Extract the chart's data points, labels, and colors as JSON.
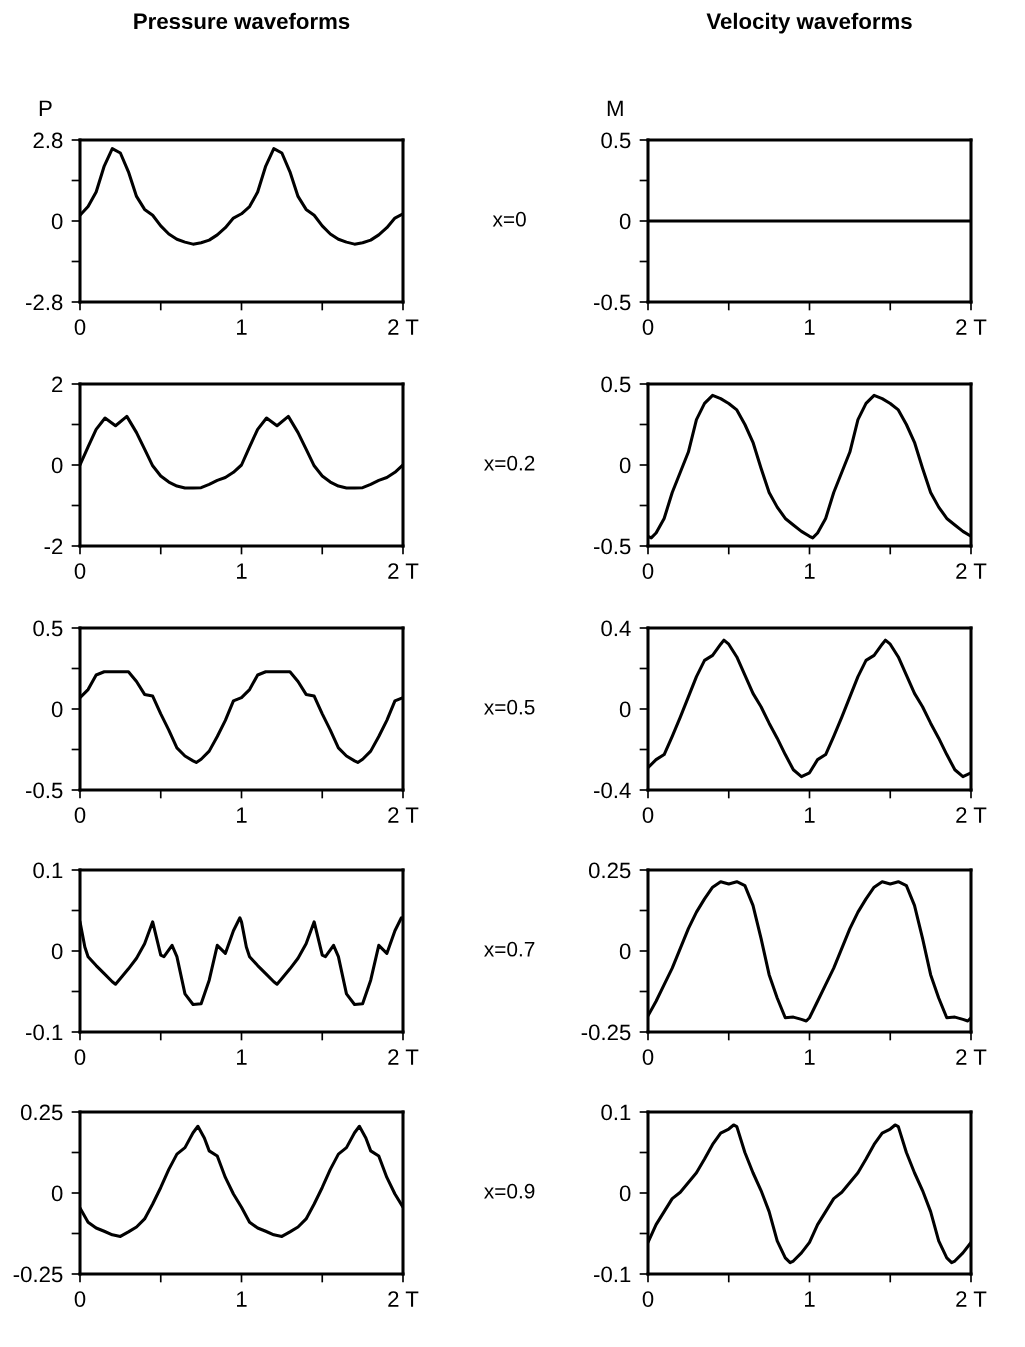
{
  "chart_data": [
    {
      "type": "line",
      "title": "Pressure waveforms",
      "ylabel": "P",
      "annotations": [
        "x=0"
      ],
      "color": "#000000",
      "line_style": "solid",
      "xlim": [
        0,
        2
      ],
      "ylim": [
        -2.8,
        2.8
      ],
      "xticks": [
        0,
        {
          "value": 0.5,
          "label": null
        },
        1,
        {
          "value": 1.5,
          "label": null
        },
        {
          "value": 2,
          "label": "2 T"
        }
      ],
      "yticks": [
        -2.8,
        {
          "value": -1.4,
          "label": null
        },
        0,
        {
          "value": 1.4,
          "label": null
        },
        2.8
      ],
      "x": [
        0,
        0.05,
        0.1,
        0.15,
        0.2,
        0.25,
        0.3,
        0.35,
        0.4,
        0.45,
        0.5,
        0.55,
        0.6,
        0.65,
        0.7,
        0.75,
        0.8,
        0.85,
        0.9,
        0.95,
        1,
        1.05,
        1.1,
        1.15,
        1.2,
        1.25,
        1.3,
        1.35,
        1.4,
        1.45,
        1.5,
        1.55,
        1.6,
        1.65,
        1.7,
        1.75,
        1.8,
        1.85,
        1.9,
        1.95,
        2
      ],
      "values": [
        0.2,
        0.5,
        1.0,
        1.9,
        2.5,
        2.35,
        1.7,
        0.85,
        0.4,
        0.2,
        -0.17,
        -0.45,
        -0.63,
        -0.73,
        -0.8,
        -0.75,
        -0.66,
        -0.48,
        -0.23,
        0.1,
        0.25,
        0.5,
        1.0,
        1.9,
        2.5,
        2.35,
        1.7,
        0.85,
        0.4,
        0.2,
        -0.17,
        -0.45,
        -0.63,
        -0.73,
        -0.8,
        -0.75,
        -0.66,
        -0.48,
        -0.23,
        0.1,
        0.25
      ]
    },
    {
      "type": "line",
      "title": "Velocity waveforms",
      "ylabel": "M",
      "color": "#000000",
      "line_style": "solid",
      "xlim": [
        0,
        2
      ],
      "ylim": [
        -0.5,
        0.5
      ],
      "xticks": [
        0,
        {
          "value": 0.5,
          "label": null
        },
        1,
        {
          "value": 1.5,
          "label": null
        },
        {
          "value": 2,
          "label": "2 T"
        }
      ],
      "yticks": [
        -0.5,
        {
          "value": -0.25,
          "label": null
        },
        0,
        {
          "value": 0.25,
          "label": null
        },
        0.5
      ],
      "x": [
        0,
        0.5,
        1,
        1.5,
        2
      ],
      "values": [
        0,
        0,
        0,
        0,
        0
      ]
    },
    {
      "type": "line",
      "annotations": [
        "x=0.2"
      ],
      "color": "#000000",
      "line_style": "solid",
      "xlim": [
        0,
        2
      ],
      "ylim": [
        -2,
        2
      ],
      "xticks": [
        0,
        {
          "value": 0.5,
          "label": null
        },
        1,
        {
          "value": 1.5,
          "label": null
        },
        {
          "value": 2,
          "label": "2 T"
        }
      ],
      "yticks": [
        -2,
        {
          "value": -1,
          "label": null
        },
        0,
        {
          "value": 1,
          "label": null
        },
        2
      ],
      "x": [
        0,
        0.05,
        0.1,
        0.155,
        0.22,
        0.29,
        0.35,
        0.4,
        0.45,
        0.5,
        0.55,
        0.6,
        0.65,
        0.7,
        0.75,
        0.8,
        0.85,
        0.9,
        0.95,
        1,
        1.05,
        1.1,
        1.155,
        1.22,
        1.29,
        1.35,
        1.4,
        1.45,
        1.5,
        1.55,
        1.6,
        1.65,
        1.7,
        1.75,
        1.8,
        1.85,
        1.9,
        1.95,
        2
      ],
      "values": [
        0,
        0.45,
        0.88,
        1.16,
        0.97,
        1.2,
        0.8,
        0.39,
        -0.02,
        -0.27,
        -0.42,
        -0.52,
        -0.57,
        -0.57,
        -0.56,
        -0.48,
        -0.38,
        -0.31,
        -0.18,
        0,
        0.45,
        0.88,
        1.16,
        0.97,
        1.2,
        0.8,
        0.39,
        -0.02,
        -0.27,
        -0.42,
        -0.52,
        -0.57,
        -0.57,
        -0.56,
        -0.48,
        -0.38,
        -0.31,
        -0.18,
        0
      ]
    },
    {
      "type": "line",
      "color": "#000000",
      "line_style": "solid",
      "xlim": [
        0,
        2
      ],
      "ylim": [
        -0.5,
        0.5
      ],
      "xticks": [
        0,
        {
          "value": 0.5,
          "label": null
        },
        1,
        {
          "value": 1.5,
          "label": null
        },
        {
          "value": 2,
          "label": "2 T"
        }
      ],
      "yticks": [
        -0.5,
        {
          "value": -0.25,
          "label": null
        },
        0,
        {
          "value": 0.25,
          "label": null
        },
        0.5
      ],
      "x": [
        0,
        0.02,
        0.05,
        0.1,
        0.15,
        0.2,
        0.25,
        0.3,
        0.35,
        0.4,
        0.45,
        0.5,
        0.55,
        0.6,
        0.65,
        0.7,
        0.75,
        0.8,
        0.85,
        0.9,
        0.95,
        1,
        1.02,
        1.05,
        1.1,
        1.15,
        1.2,
        1.25,
        1.3,
        1.35,
        1.4,
        1.45,
        1.5,
        1.55,
        1.6,
        1.65,
        1.7,
        1.75,
        1.8,
        1.85,
        1.9,
        1.95,
        2
      ],
      "values": [
        -0.44,
        -0.45,
        -0.42,
        -0.33,
        -0.17,
        -0.045,
        0.08,
        0.28,
        0.38,
        0.43,
        0.41,
        0.38,
        0.34,
        0.25,
        0.14,
        -0.02,
        -0.17,
        -0.26,
        -0.33,
        -0.37,
        -0.41,
        -0.44,
        -0.45,
        -0.42,
        -0.33,
        -0.17,
        -0.045,
        0.08,
        0.28,
        0.38,
        0.43,
        0.41,
        0.38,
        0.34,
        0.25,
        0.14,
        -0.02,
        -0.17,
        -0.26,
        -0.33,
        -0.37,
        -0.41,
        -0.44
      ]
    },
    {
      "type": "line",
      "annotations": [
        "x=0.5"
      ],
      "color": "#000000",
      "line_style": "solid",
      "xlim": [
        0,
        2
      ],
      "ylim": [
        -0.5,
        0.5
      ],
      "xticks": [
        0,
        {
          "value": 0.5,
          "label": null
        },
        1,
        {
          "value": 1.5,
          "label": null
        },
        {
          "value": 2,
          "label": "2 T"
        }
      ],
      "yticks": [
        -0.5,
        {
          "value": -0.25,
          "label": null
        },
        0,
        {
          "value": 0.25,
          "label": null
        },
        0.5
      ],
      "x": [
        0,
        0.05,
        0.1,
        0.15,
        0.2,
        0.25,
        0.3,
        0.35,
        0.4,
        0.45,
        0.5,
        0.55,
        0.6,
        0.65,
        0.7,
        0.72,
        0.75,
        0.8,
        0.85,
        0.9,
        0.95,
        1,
        1.05,
        1.1,
        1.15,
        1.2,
        1.25,
        1.3,
        1.35,
        1.4,
        1.45,
        1.5,
        1.55,
        1.6,
        1.65,
        1.7,
        1.72,
        1.75,
        1.8,
        1.85,
        1.9,
        1.95,
        2
      ],
      "values": [
        0.07,
        0.12,
        0.21,
        0.23,
        0.23,
        0.23,
        0.23,
        0.17,
        0.09,
        0.08,
        -0.03,
        -0.13,
        -0.24,
        -0.29,
        -0.32,
        -0.33,
        -0.31,
        -0.26,
        -0.17,
        -0.07,
        0.05,
        0.07,
        0.12,
        0.21,
        0.23,
        0.23,
        0.23,
        0.23,
        0.17,
        0.09,
        0.08,
        -0.03,
        -0.13,
        -0.24,
        -0.29,
        -0.32,
        -0.33,
        -0.31,
        -0.26,
        -0.17,
        -0.07,
        0.05,
        0.07
      ]
    },
    {
      "type": "line",
      "color": "#000000",
      "line_style": "solid",
      "xlim": [
        0,
        2
      ],
      "ylim": [
        -0.4,
        0.4
      ],
      "xticks": [
        0,
        {
          "value": 0.5,
          "label": null
        },
        1,
        {
          "value": 1.5,
          "label": null
        },
        {
          "value": 2,
          "label": "2 T"
        }
      ],
      "yticks": [
        -0.4,
        {
          "value": -0.2,
          "label": null
        },
        0,
        {
          "value": 0.2,
          "label": null
        },
        0.4
      ],
      "x": [
        0,
        0.05,
        0.1,
        0.15,
        0.2,
        0.25,
        0.3,
        0.35,
        0.4,
        0.45,
        0.47,
        0.5,
        0.55,
        0.6,
        0.65,
        0.7,
        0.75,
        0.8,
        0.85,
        0.9,
        0.95,
        1,
        1.05,
        1.1,
        1.15,
        1.2,
        1.25,
        1.3,
        1.35,
        1.4,
        1.45,
        1.47,
        1.5,
        1.55,
        1.6,
        1.65,
        1.7,
        1.75,
        1.8,
        1.85,
        1.9,
        1.95,
        2
      ],
      "values": [
        -0.29,
        -0.25,
        -0.225,
        -0.135,
        -0.04,
        0.06,
        0.16,
        0.24,
        0.265,
        0.32,
        0.34,
        0.32,
        0.257,
        0.167,
        0.077,
        0.011,
        -0.07,
        -0.144,
        -0.225,
        -0.3,
        -0.334,
        -0.315,
        -0.25,
        -0.225,
        -0.135,
        -0.04,
        0.06,
        0.16,
        0.24,
        0.265,
        0.32,
        0.34,
        0.32,
        0.257,
        0.167,
        0.077,
        0.011,
        -0.07,
        -0.144,
        -0.225,
        -0.3,
        -0.334,
        -0.315
      ]
    },
    {
      "type": "line",
      "annotations": [
        "x=0.7"
      ],
      "color": "#000000",
      "line_style": "solid",
      "xlim": [
        0,
        2
      ],
      "ylim": [
        -0.1,
        0.1
      ],
      "xticks": [
        0,
        {
          "value": 0.5,
          "label": null
        },
        1,
        {
          "value": 1.5,
          "label": null
        },
        {
          "value": 2,
          "label": "2 T"
        }
      ],
      "yticks": [
        -0.1,
        {
          "value": -0.05,
          "label": null
        },
        0,
        {
          "value": 0.05,
          "label": null
        },
        0.1
      ],
      "x": [
        0,
        0.03,
        0.05,
        0.1,
        0.15,
        0.2,
        0.22,
        0.25,
        0.3,
        0.35,
        0.4,
        0.45,
        0.5,
        0.52,
        0.57,
        0.6,
        0.65,
        0.7,
        0.75,
        0.8,
        0.85,
        0.9,
        0.95,
        0.99,
        1,
        1.03,
        1.05,
        1.1,
        1.15,
        1.2,
        1.22,
        1.25,
        1.3,
        1.35,
        1.4,
        1.45,
        1.5,
        1.52,
        1.57,
        1.6,
        1.65,
        1.7,
        1.75,
        1.8,
        1.85,
        1.9,
        1.95,
        1.99,
        2
      ],
      "values": [
        0.036,
        0.005,
        -0.007,
        -0.018,
        -0.028,
        -0.038,
        -0.041,
        -0.034,
        -0.022,
        -0.009,
        0.009,
        0.036,
        -0.005,
        -0.007,
        0.007,
        -0.007,
        -0.053,
        -0.066,
        -0.065,
        -0.036,
        0.007,
        -0.003,
        0.025,
        0.041,
        0.036,
        0.005,
        -0.007,
        -0.018,
        -0.028,
        -0.038,
        -0.041,
        -0.034,
        -0.022,
        -0.009,
        0.009,
        0.036,
        -0.005,
        -0.007,
        0.007,
        -0.007,
        -0.053,
        -0.066,
        -0.065,
        -0.036,
        0.007,
        -0.003,
        0.025,
        0.041,
        0.04
      ]
    },
    {
      "type": "line",
      "color": "#000000",
      "line_style": "solid",
      "xlim": [
        0,
        2
      ],
      "ylim": [
        -0.25,
        0.25
      ],
      "xticks": [
        0,
        {
          "value": 0.5,
          "label": null
        },
        1,
        {
          "value": 1.5,
          "label": null
        },
        {
          "value": 2,
          "label": "2 T"
        }
      ],
      "yticks": [
        -0.25,
        {
          "value": -0.125,
          "label": null
        },
        0,
        {
          "value": 0.125,
          "label": null
        },
        0.25
      ],
      "x": [
        0,
        0.05,
        0.1,
        0.15,
        0.2,
        0.25,
        0.3,
        0.35,
        0.4,
        0.45,
        0.5,
        0.55,
        0.6,
        0.65,
        0.7,
        0.75,
        0.8,
        0.85,
        0.9,
        0.95,
        0.98,
        1,
        1.05,
        1.1,
        1.15,
        1.2,
        1.25,
        1.3,
        1.35,
        1.4,
        1.45,
        1.5,
        1.55,
        1.6,
        1.65,
        1.7,
        1.75,
        1.8,
        1.85,
        1.9,
        1.95,
        1.98,
        2
      ],
      "values": [
        -0.2,
        -0.155,
        -0.104,
        -0.053,
        0.008,
        0.069,
        0.12,
        0.161,
        0.197,
        0.214,
        0.207,
        0.214,
        0.202,
        0.141,
        0.039,
        -0.073,
        -0.145,
        -0.206,
        -0.204,
        -0.211,
        -0.216,
        -0.206,
        -0.155,
        -0.104,
        -0.053,
        0.008,
        0.069,
        0.12,
        0.161,
        0.197,
        0.214,
        0.207,
        0.214,
        0.202,
        0.141,
        0.039,
        -0.073,
        -0.145,
        -0.206,
        -0.204,
        -0.211,
        -0.216,
        -0.206
      ]
    },
    {
      "type": "line",
      "annotations": [
        "x=0.9"
      ],
      "color": "#000000",
      "line_style": "solid",
      "xlim": [
        0,
        2
      ],
      "ylim": [
        -0.25,
        0.25
      ],
      "xticks": [
        0,
        {
          "value": 0.5,
          "label": null
        },
        1,
        {
          "value": 1.5,
          "label": null
        },
        {
          "value": 2,
          "label": "2 T"
        }
      ],
      "yticks": [
        -0.25,
        {
          "value": -0.125,
          "label": null
        },
        0,
        {
          "value": 0.125,
          "label": null
        },
        0.25
      ],
      "x": [
        0,
        0.05,
        0.1,
        0.15,
        0.2,
        0.25,
        0.3,
        0.35,
        0.4,
        0.45,
        0.5,
        0.55,
        0.6,
        0.65,
        0.7,
        0.73,
        0.77,
        0.8,
        0.85,
        0.9,
        0.95,
        1,
        1.05,
        1.1,
        1.15,
        1.2,
        1.25,
        1.3,
        1.35,
        1.4,
        1.45,
        1.5,
        1.55,
        1.6,
        1.65,
        1.7,
        1.73,
        1.77,
        1.8,
        1.85,
        1.9,
        1.95,
        2
      ],
      "values": [
        -0.046,
        -0.09,
        -0.108,
        -0.118,
        -0.129,
        -0.134,
        -0.12,
        -0.105,
        -0.08,
        -0.034,
        0.017,
        0.073,
        0.12,
        0.14,
        0.186,
        0.206,
        0.17,
        0.13,
        0.114,
        0.048,
        -0.003,
        -0.044,
        -0.09,
        -0.108,
        -0.118,
        -0.129,
        -0.134,
        -0.12,
        -0.105,
        -0.08,
        -0.034,
        0.017,
        0.073,
        0.12,
        0.14,
        0.186,
        0.206,
        0.17,
        0.13,
        0.114,
        0.048,
        -0.003,
        -0.044
      ]
    },
    {
      "type": "line",
      "color": "#000000",
      "line_style": "solid",
      "xlim": [
        0,
        2
      ],
      "ylim": [
        -0.1,
        0.1
      ],
      "xticks": [
        0,
        {
          "value": 0.5,
          "label": null
        },
        1,
        {
          "value": 1.5,
          "label": null
        },
        {
          "value": 2,
          "label": "2 T"
        }
      ],
      "yticks": [
        -0.1,
        {
          "value": -0.05,
          "label": null
        },
        0,
        {
          "value": 0.05,
          "label": null
        },
        0.1
      ],
      "x": [
        0,
        0.05,
        0.1,
        0.15,
        0.2,
        0.25,
        0.3,
        0.35,
        0.4,
        0.45,
        0.5,
        0.53,
        0.55,
        0.6,
        0.65,
        0.7,
        0.75,
        0.8,
        0.85,
        0.88,
        0.9,
        0.95,
        1,
        1.05,
        1.1,
        1.15,
        1.2,
        1.25,
        1.3,
        1.35,
        1.4,
        1.45,
        1.5,
        1.53,
        1.55,
        1.6,
        1.65,
        1.7,
        1.75,
        1.8,
        1.85,
        1.88,
        1.9,
        1.95,
        2
      ],
      "values": [
        -0.061,
        -0.039,
        -0.023,
        -0.007,
        0.001,
        0.013,
        0.025,
        0.042,
        0.06,
        0.074,
        0.079,
        0.084,
        0.082,
        0.05,
        0.025,
        0.003,
        -0.023,
        -0.059,
        -0.08,
        -0.086,
        -0.084,
        -0.074,
        -0.061,
        -0.039,
        -0.023,
        -0.007,
        0.001,
        0.013,
        0.025,
        0.042,
        0.06,
        0.074,
        0.079,
        0.084,
        0.082,
        0.05,
        0.025,
        0.003,
        -0.023,
        -0.059,
        -0.08,
        -0.086,
        -0.084,
        -0.074,
        -0.061
      ]
    }
  ]
}
